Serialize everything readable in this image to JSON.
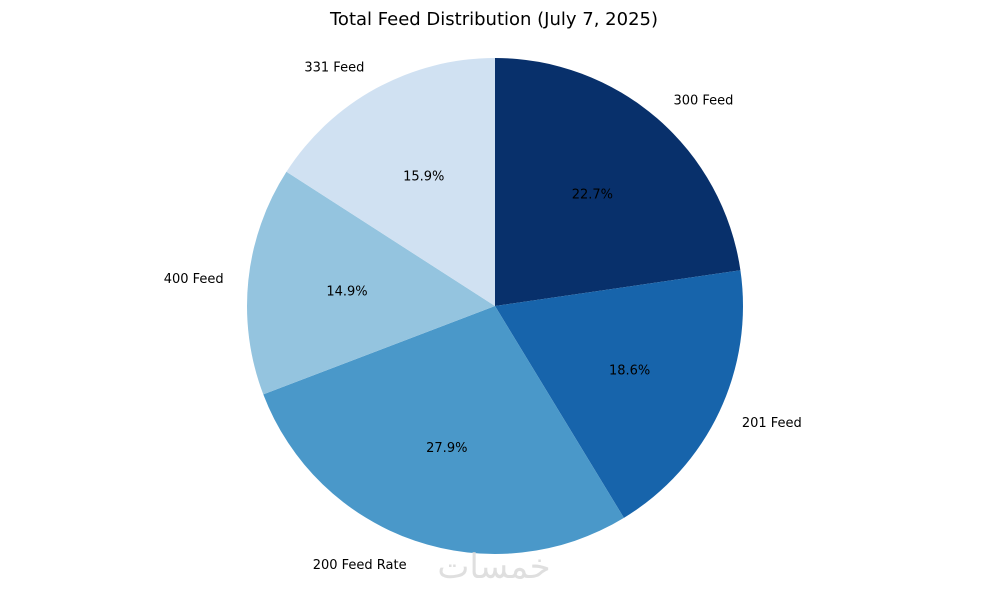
{
  "chart_data": {
    "type": "pie",
    "title": "Total Feed Distribution (July 7, 2025)",
    "start_angle_deg": 90,
    "direction": "clockwise",
    "slices": [
      {
        "label": "300 Feed",
        "value": 22.7,
        "pct_label": "22.7%",
        "color": "#08306b"
      },
      {
        "label": "201 Feed",
        "value": 18.6,
        "pct_label": "18.6%",
        "color": "#1764ab"
      },
      {
        "label": "200 Feed Rate",
        "value": 27.9,
        "pct_label": "27.9%",
        "color": "#4a98c9"
      },
      {
        "label": "400 Feed",
        "value": 14.9,
        "pct_label": "14.9%",
        "color": "#94c4df"
      },
      {
        "label": "331 Feed",
        "value": 15.9,
        "pct_label": "15.9%",
        "color": "#d0e1f2"
      }
    ]
  },
  "watermark": "خمسات"
}
